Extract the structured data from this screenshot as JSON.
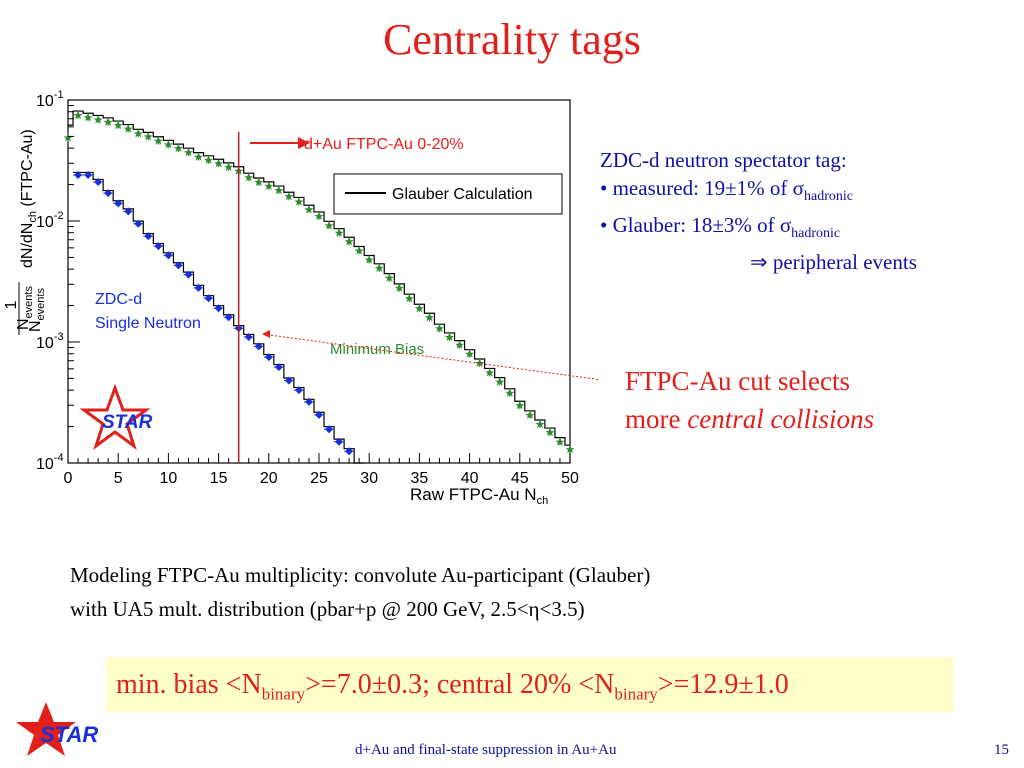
{
  "slide": {
    "title": "Centrality tags",
    "footer_text": "d+Au and final-state suppression in Au+Au",
    "page_number": "15"
  },
  "annotations": {
    "zdc_heading": "ZDC-d neutron spectator tag:",
    "measured_prefix": "• measured: 19±1% of σ",
    "measured_sub": "hadronic",
    "glauber_prefix": "• Glauber: 18±3% of σ",
    "glauber_sub": "hadronic",
    "conclusion": "⇒ peripheral events",
    "cut_line1": "FTPC-Au cut selects",
    "cut_line2_plain": "more ",
    "cut_line2_italic": "central collisions"
  },
  "modeling": {
    "line1": "Modeling FTPC-Au multiplicity: convolute Au-participant (Glauber)",
    "line2": "with UA5 mult. distribution (pbar+p @ 200 GeV, 2.5<η<3.5)"
  },
  "summary": {
    "part1": "min. bias <N",
    "sub1": "binary",
    "part2": ">=7.0±0.3; central 20% <N",
    "sub2": "binary",
    "part3": ">=12.9±1.0"
  },
  "logos": {
    "plot_logo": "STAR",
    "corner_logo": "STAR"
  },
  "colors": {
    "title": "#e0201b",
    "text_blue": "#1010a0",
    "minbias": "#2e8b2e",
    "zdc": "#1a2fd8",
    "highlight": "#ffffcc"
  },
  "chart_data": {
    "type": "scatter",
    "xlabel": "Raw FTPC-Au  N_ch",
    "ylabel": "1/N_events dN/dN_ch (FTPC-Au)",
    "xlim": [
      0,
      50
    ],
    "ylim": [
      0.0001,
      0.1
    ],
    "yscale": "log",
    "x_ticks": [
      0,
      5,
      10,
      15,
      20,
      25,
      30,
      35,
      40,
      45,
      50
    ],
    "y_ticks": [
      "10^-1",
      "10^-2",
      "10^-3",
      "10^-4"
    ],
    "cut_label": "d+Au FTPC-Au 0-20%",
    "cut_x": 17,
    "legend": {
      "label": "Glauber Calculation",
      "placement": "top-right"
    },
    "series": [
      {
        "name": "Minimum Bias",
        "x": [
          0,
          1,
          2,
          3,
          4,
          5,
          6,
          7,
          8,
          9,
          10,
          11,
          12,
          13,
          14,
          15,
          16,
          17,
          18,
          19,
          20,
          21,
          22,
          23,
          24,
          25,
          26,
          27,
          28,
          29,
          30,
          31,
          32,
          33,
          34,
          35,
          36,
          37,
          38,
          39,
          40,
          41,
          42,
          43,
          44,
          45,
          46,
          47,
          48,
          49,
          50
        ],
        "y": [
          0.049,
          0.075,
          0.072,
          0.069,
          0.066,
          0.062,
          0.058,
          0.053,
          0.05,
          0.046,
          0.043,
          0.04,
          0.037,
          0.034,
          0.032,
          0.03,
          0.028,
          0.026,
          0.023,
          0.021,
          0.0195,
          0.018,
          0.016,
          0.0145,
          0.0125,
          0.011,
          0.0092,
          0.008,
          0.0068,
          0.0057,
          0.0048,
          0.0041,
          0.0034,
          0.0028,
          0.0023,
          0.0019,
          0.0016,
          0.0013,
          0.0011,
          0.00095,
          0.0008,
          0.00067,
          0.00056,
          0.00047,
          0.00038,
          0.0003,
          0.00025,
          0.00021,
          0.00018,
          0.00015,
          0.00013
        ]
      },
      {
        "name": "ZDC-d Single Neutron",
        "x": [
          1,
          2,
          3,
          4,
          5,
          6,
          7,
          8,
          9,
          10,
          11,
          12,
          13,
          14,
          15,
          16,
          17,
          18,
          19,
          20,
          21,
          22,
          23,
          24,
          25,
          26,
          27,
          28
        ],
        "y": [
          0.024,
          0.024,
          0.021,
          0.017,
          0.014,
          0.012,
          0.0095,
          0.0075,
          0.0062,
          0.0052,
          0.0043,
          0.0036,
          0.0028,
          0.0023,
          0.0019,
          0.0016,
          0.0013,
          0.0011,
          0.00092,
          0.00075,
          0.00062,
          0.00048,
          0.0004,
          0.00032,
          0.00025,
          0.00019,
          0.00015,
          0.000125
        ]
      }
    ]
  }
}
